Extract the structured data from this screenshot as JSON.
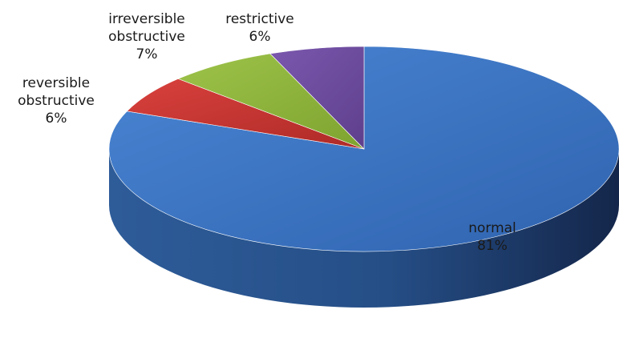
{
  "chart_data": {
    "type": "pie",
    "style": "3d",
    "legend": "none",
    "slices": [
      {
        "name": "normal",
        "value": 81,
        "label": "81%",
        "color": "#3B76C6"
      },
      {
        "name": "reversible obstructive",
        "value": 6,
        "label": "6%",
        "color": "#C0302C"
      },
      {
        "name": "irreversible obstructive",
        "value": 7,
        "label": "7%",
        "color": "#8DB33A"
      },
      {
        "name": "restrictive",
        "value": 6,
        "label": "6%",
        "color": "#6B4A9C"
      }
    ],
    "labels": {
      "normal": {
        "lines": [
          "normal",
          "81%"
        ]
      },
      "reversible obstructive": {
        "lines": [
          "reversible",
          "obstructive",
          "6%"
        ]
      },
      "irreversible obstructive": {
        "lines": [
          "irreversible",
          "obstructive",
          "7%"
        ]
      },
      "restrictive": {
        "lines": [
          "restrictive",
          "6%"
        ]
      }
    }
  }
}
